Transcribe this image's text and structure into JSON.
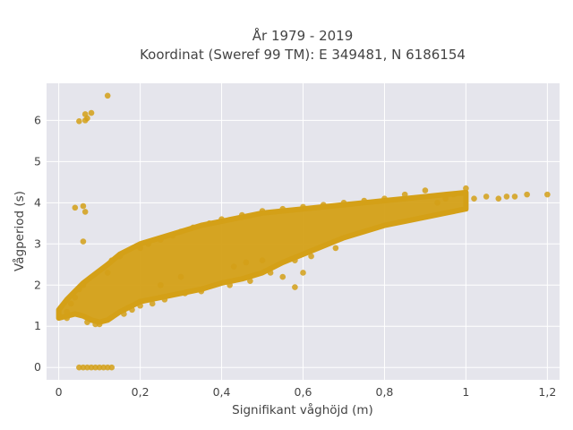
{
  "chart_data": {
    "type": "scatter",
    "title_lines": [
      "År 1979 - 2019",
      "Koordinat (Sweref 99 TM): E 349481, N 6186154"
    ],
    "xlabel": "Signifikant våghöjd (m)",
    "ylabel": "Vågperiod (s)",
    "xlim": [
      -0.03,
      1.23
    ],
    "ylim": [
      -0.3,
      6.9
    ],
    "xticks": [
      0,
      0.2,
      0.4,
      0.6,
      0.8,
      1,
      1.2
    ],
    "xtick_labels": [
      "0",
      "0,2",
      "0,4",
      "0,6",
      "0,8",
      "1",
      "1,2"
    ],
    "yticks": [
      0,
      1,
      2,
      3,
      4,
      5,
      6
    ],
    "ytick_labels": [
      "0",
      "1",
      "2",
      "3",
      "4",
      "5",
      "6"
    ],
    "grid": true,
    "marker_color": "#D4A017",
    "plot_background": "#E5E5EC",
    "points": [
      [
        0.05,
        5.98
      ],
      [
        0.065,
        6.15
      ],
      [
        0.07,
        6.05
      ],
      [
        0.08,
        6.18
      ],
      [
        0.065,
        6.0
      ],
      [
        0.12,
        6.6
      ],
      [
        0.04,
        3.88
      ],
      [
        0.06,
        3.92
      ],
      [
        0.065,
        3.78
      ],
      [
        0.06,
        3.06
      ],
      [
        0.05,
        0
      ],
      [
        0.06,
        0
      ],
      [
        0.07,
        0
      ],
      [
        0.08,
        0
      ],
      [
        0.09,
        0
      ],
      [
        0.1,
        0
      ],
      [
        0.11,
        0
      ],
      [
        0.12,
        0
      ],
      [
        0.13,
        0
      ],
      [
        0.02,
        1.2
      ],
      [
        0.02,
        1.35
      ],
      [
        0.03,
        1.55
      ],
      [
        0.04,
        1.7
      ],
      [
        0.05,
        1.9
      ],
      [
        0.06,
        2.0
      ],
      [
        0.07,
        1.1
      ],
      [
        0.09,
        1.05
      ],
      [
        0.1,
        1.05
      ],
      [
        0.12,
        2.3
      ],
      [
        0.13,
        2.6
      ],
      [
        0.15,
        2.7
      ],
      [
        0.16,
        1.3
      ],
      [
        0.18,
        1.4
      ],
      [
        0.2,
        2.9
      ],
      [
        0.22,
        3.0
      ],
      [
        0.23,
        1.55
      ],
      [
        0.25,
        3.1
      ],
      [
        0.26,
        1.65
      ],
      [
        0.28,
        3.2
      ],
      [
        0.3,
        3.3
      ],
      [
        0.31,
        1.8
      ],
      [
        0.33,
        3.4
      ],
      [
        0.35,
        1.85
      ],
      [
        0.37,
        3.5
      ],
      [
        0.4,
        3.6
      ],
      [
        0.42,
        2.0
      ],
      [
        0.45,
        3.7
      ],
      [
        0.47,
        2.1
      ],
      [
        0.5,
        3.8
      ],
      [
        0.52,
        2.3
      ],
      [
        0.55,
        3.85
      ],
      [
        0.58,
        2.6
      ],
      [
        0.6,
        3.9
      ],
      [
        0.62,
        2.7
      ],
      [
        0.65,
        3.95
      ],
      [
        0.68,
        2.9
      ],
      [
        0.7,
        4.0
      ],
      [
        0.75,
        4.05
      ],
      [
        0.8,
        4.1
      ],
      [
        0.85,
        4.2
      ],
      [
        0.9,
        4.3
      ],
      [
        0.93,
        4.0
      ],
      [
        0.95,
        4.1
      ],
      [
        0.97,
        4.2
      ],
      [
        1.0,
        4.35
      ],
      [
        1.02,
        4.1
      ],
      [
        1.05,
        4.15
      ],
      [
        1.08,
        4.1
      ],
      [
        1.1,
        4.15
      ],
      [
        1.12,
        4.15
      ],
      [
        1.15,
        4.2
      ],
      [
        1.2,
        4.2
      ],
      [
        0.2,
        1.5
      ],
      [
        0.2,
        1.6
      ],
      [
        0.25,
        2.0
      ],
      [
        0.3,
        2.2
      ],
      [
        0.43,
        2.45
      ],
      [
        0.46,
        2.55
      ],
      [
        0.5,
        2.6
      ],
      [
        0.55,
        2.2
      ],
      [
        0.58,
        1.95
      ],
      [
        0.6,
        2.3
      ]
    ],
    "band": {
      "x": [
        0.0,
        0.02,
        0.04,
        0.06,
        0.08,
        0.1,
        0.12,
        0.15,
        0.2,
        0.25,
        0.3,
        0.35,
        0.4,
        0.45,
        0.5,
        0.55,
        0.6,
        0.65,
        0.7,
        0.75,
        0.8,
        0.85,
        0.9,
        0.95,
        1.0
      ],
      "lower": [
        1.2,
        1.25,
        1.3,
        1.25,
        1.15,
        1.1,
        1.15,
        1.35,
        1.6,
        1.7,
        1.8,
        1.9,
        2.05,
        2.15,
        2.3,
        2.55,
        2.75,
        2.95,
        3.15,
        3.3,
        3.45,
        3.55,
        3.65,
        3.75,
        3.85
      ],
      "upper": [
        1.4,
        1.65,
        1.85,
        2.05,
        2.2,
        2.35,
        2.5,
        2.75,
        3.0,
        3.15,
        3.3,
        3.45,
        3.55,
        3.65,
        3.75,
        3.8,
        3.85,
        3.9,
        3.95,
        4.0,
        4.05,
        4.1,
        4.15,
        4.2,
        4.25
      ]
    }
  }
}
